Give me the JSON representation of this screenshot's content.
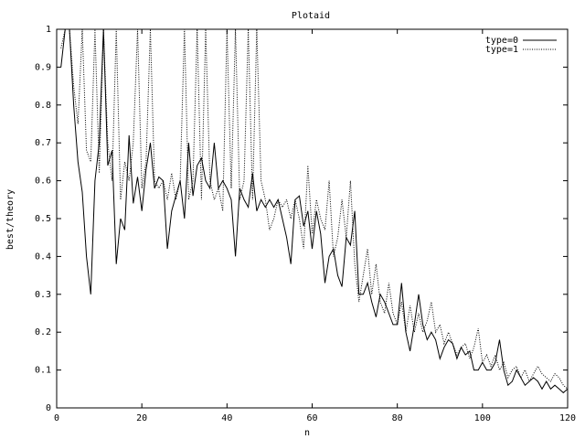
{
  "chart_data": {
    "type": "line",
    "title": "Plotaid",
    "xlabel": "n",
    "ylabel": "best/theory",
    "xlim": [
      0,
      120
    ],
    "ylim": [
      0,
      1
    ],
    "xticks": [
      "0",
      "20",
      "40",
      "60",
      "80",
      "100",
      "120"
    ],
    "yticks": [
      "0",
      "0.1",
      "0.2",
      "0.3",
      "0.4",
      "0.5",
      "0.6",
      "0.7",
      "0.8",
      "0.9",
      "1"
    ],
    "grid": false,
    "legend_position": "top-right",
    "series": [
      {
        "name": "type=0",
        "style": "solid",
        "color": "#000000",
        "x": [
          1,
          2,
          3,
          4,
          5,
          6,
          7,
          8,
          9,
          10,
          11,
          12,
          13,
          14,
          15,
          16,
          17,
          18,
          19,
          20,
          21,
          22,
          23,
          24,
          25,
          26,
          27,
          28,
          29,
          30,
          31,
          32,
          33,
          34,
          35,
          36,
          37,
          38,
          39,
          40,
          41,
          42,
          43,
          44,
          45,
          46,
          47,
          48,
          49,
          50,
          51,
          52,
          53,
          54,
          55,
          56,
          57,
          58,
          59,
          60,
          61,
          62,
          63,
          64,
          65,
          66,
          67,
          68,
          69,
          70,
          71,
          72,
          73,
          74,
          75,
          76,
          77,
          78,
          79,
          80,
          81,
          82,
          83,
          84,
          85,
          86,
          87,
          88,
          89,
          90,
          91,
          92,
          93,
          94,
          95,
          96,
          97,
          98,
          99,
          100,
          101,
          102,
          103,
          104,
          105,
          106,
          107,
          108,
          109,
          110,
          111,
          112,
          113,
          114,
          115,
          116,
          117,
          118,
          119,
          120
        ],
        "y": [
          0.9,
          1.0,
          1.0,
          0.8,
          0.65,
          0.57,
          0.4,
          0.3,
          0.6,
          0.7,
          1.0,
          0.64,
          0.68,
          0.38,
          0.5,
          0.47,
          0.72,
          0.54,
          0.61,
          0.52,
          0.63,
          0.7,
          0.58,
          0.61,
          0.6,
          0.42,
          0.52,
          0.56,
          0.6,
          0.5,
          0.7,
          0.56,
          0.64,
          0.66,
          0.6,
          0.58,
          0.7,
          0.58,
          0.6,
          0.58,
          0.55,
          0.4,
          0.58,
          0.55,
          0.53,
          0.62,
          0.52,
          0.55,
          0.53,
          0.55,
          0.53,
          0.55,
          0.5,
          0.45,
          0.38,
          0.55,
          0.56,
          0.48,
          0.52,
          0.42,
          0.52,
          0.46,
          0.33,
          0.4,
          0.42,
          0.35,
          0.32,
          0.45,
          0.43,
          0.52,
          0.3,
          0.3,
          0.33,
          0.28,
          0.24,
          0.3,
          0.28,
          0.25,
          0.22,
          0.22,
          0.33,
          0.2,
          0.15,
          0.22,
          0.3,
          0.22,
          0.18,
          0.2,
          0.18,
          0.13,
          0.16,
          0.18,
          0.17,
          0.13,
          0.16,
          0.14,
          0.15,
          0.1,
          0.1,
          0.12,
          0.1,
          0.1,
          0.12,
          0.18,
          0.1,
          0.06,
          0.07,
          0.1,
          0.08,
          0.06,
          0.07,
          0.08,
          0.07,
          0.05,
          0.07,
          0.05,
          0.06,
          0.05,
          0.04,
          0.05
        ]
      },
      {
        "name": "type=1",
        "style": "dotted",
        "color": "#000000",
        "x": [
          1,
          2,
          3,
          4,
          5,
          6,
          7,
          8,
          9,
          10,
          11,
          12,
          13,
          14,
          15,
          16,
          17,
          18,
          19,
          20,
          21,
          22,
          23,
          24,
          25,
          26,
          27,
          28,
          29,
          30,
          31,
          32,
          33,
          34,
          35,
          36,
          37,
          38,
          39,
          40,
          41,
          42,
          43,
          44,
          45,
          46,
          47,
          48,
          49,
          50,
          51,
          52,
          53,
          54,
          55,
          56,
          57,
          58,
          59,
          60,
          61,
          62,
          63,
          64,
          65,
          66,
          67,
          68,
          69,
          70,
          71,
          72,
          73,
          74,
          75,
          76,
          77,
          78,
          79,
          80,
          81,
          82,
          83,
          84,
          85,
          86,
          87,
          88,
          89,
          90,
          91,
          92,
          93,
          94,
          95,
          96,
          97,
          98,
          99,
          100,
          101,
          102,
          103,
          104,
          105,
          106,
          107,
          108,
          109,
          110,
          111,
          112,
          113,
          114,
          115,
          116,
          117,
          118,
          119,
          120
        ],
        "y": [
          0.95,
          1.0,
          1.0,
          0.85,
          0.75,
          1.0,
          0.68,
          0.65,
          1.0,
          0.62,
          1.0,
          0.7,
          0.6,
          1.0,
          0.55,
          0.65,
          0.6,
          0.7,
          1.0,
          0.58,
          0.65,
          1.0,
          0.6,
          0.58,
          0.6,
          0.55,
          0.62,
          0.55,
          0.6,
          1.0,
          0.55,
          0.6,
          1.0,
          0.55,
          1.0,
          0.6,
          0.55,
          0.58,
          0.52,
          1.0,
          0.58,
          1.0,
          0.55,
          0.6,
          1.0,
          0.55,
          1.0,
          0.6,
          0.55,
          0.47,
          0.5,
          0.55,
          0.53,
          0.55,
          0.5,
          0.55,
          0.5,
          0.42,
          0.64,
          0.46,
          0.55,
          0.5,
          0.47,
          0.6,
          0.4,
          0.45,
          0.55,
          0.45,
          0.6,
          0.38,
          0.28,
          0.35,
          0.42,
          0.3,
          0.38,
          0.28,
          0.25,
          0.33,
          0.25,
          0.22,
          0.28,
          0.2,
          0.27,
          0.2,
          0.25,
          0.2,
          0.23,
          0.28,
          0.2,
          0.22,
          0.17,
          0.2,
          0.17,
          0.14,
          0.16,
          0.17,
          0.13,
          0.16,
          0.21,
          0.12,
          0.14,
          0.11,
          0.14,
          0.1,
          0.12,
          0.08,
          0.1,
          0.11,
          0.08,
          0.1,
          0.07,
          0.09,
          0.11,
          0.09,
          0.08,
          0.07,
          0.09,
          0.08,
          0.06,
          0.05
        ]
      }
    ]
  }
}
